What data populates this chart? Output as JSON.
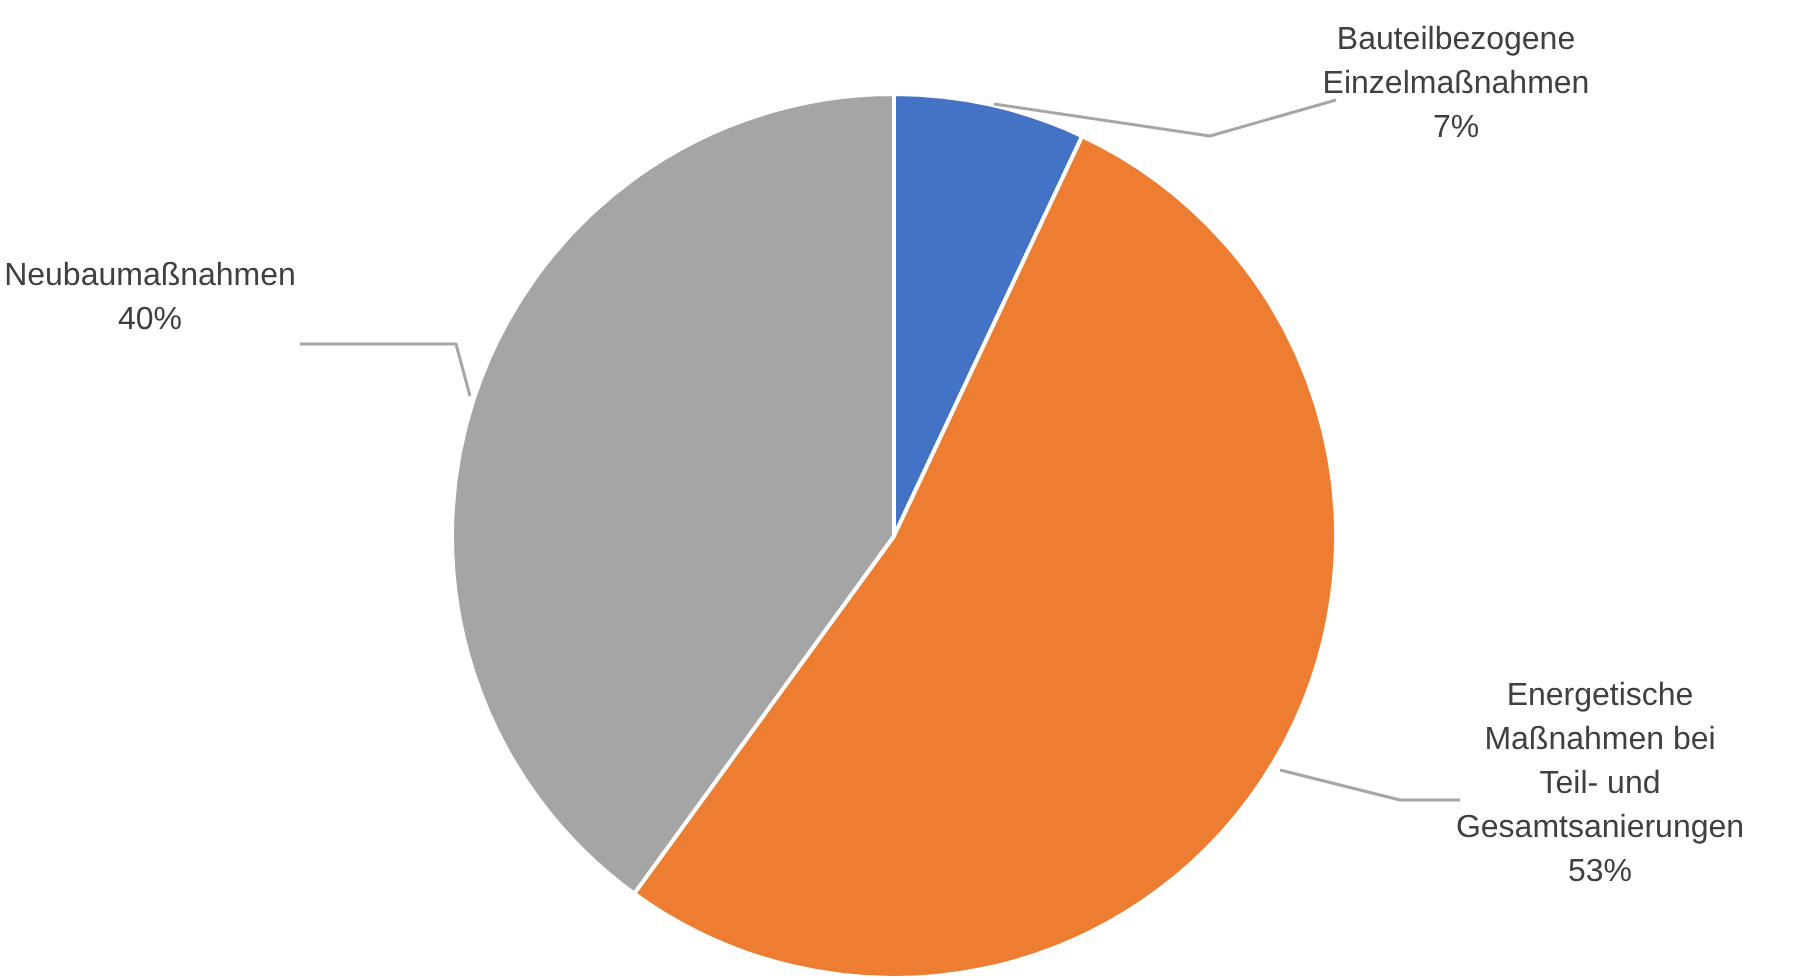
{
  "chart_data": {
    "type": "pie",
    "categories": [
      "Bauteilbezogene Einzelmaßnahmen",
      "Energetische Maßnahmen bei Teil- und Gesamtsanierungen",
      "Neubaumaßnahmen"
    ],
    "values": [
      7,
      53,
      40
    ],
    "value_labels": [
      "7%",
      "53%",
      "40%"
    ],
    "colors": [
      "#4472c4",
      "#ed7d31",
      "#a5a5a5"
    ],
    "legend": false
  }
}
